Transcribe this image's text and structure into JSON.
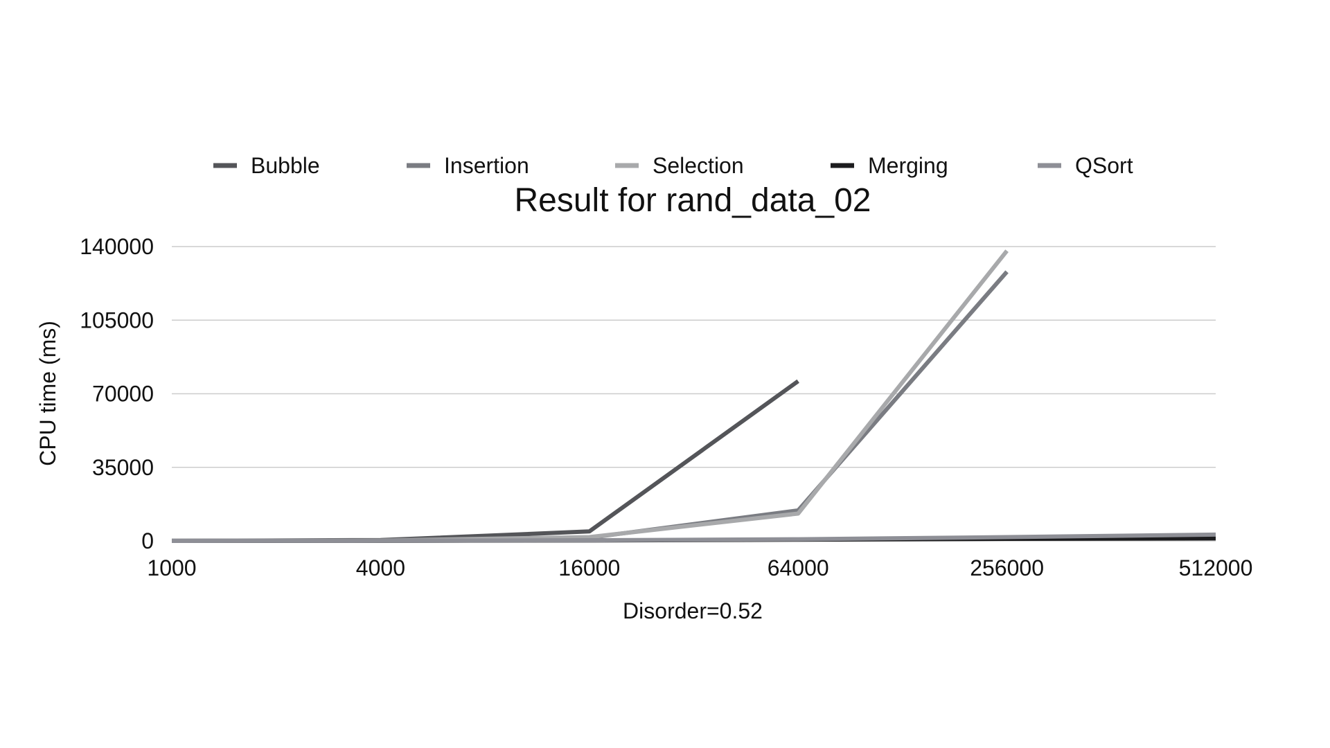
{
  "chart_data": {
    "type": "line",
    "title": "Result for rand_data_02",
    "xlabel": "Disorder=0.52",
    "ylabel": "CPU time (ms)",
    "categories": [
      "1000",
      "4000",
      "16000",
      "64000",
      "256000",
      "512000"
    ],
    "yticks": [
      "0",
      "35000",
      "70000",
      "105000",
      "140000"
    ],
    "ylim": [
      0,
      140000
    ],
    "grid": true,
    "legend_position": "top",
    "series": [
      {
        "name": "Bubble",
        "color": "#545559",
        "values": [
          50,
          400,
          4500,
          76000,
          null,
          null
        ]
      },
      {
        "name": "Insertion",
        "color": "#7a7c82",
        "values": [
          20,
          150,
          1500,
          14500,
          128000,
          null
        ]
      },
      {
        "name": "Selection",
        "color": "#a8a9ab",
        "values": [
          25,
          200,
          1800,
          13000,
          138000,
          null
        ]
      },
      {
        "name": "Merging",
        "color": "#1c1c1e",
        "values": [
          5,
          40,
          200,
          600,
          1000,
          1200
        ]
      },
      {
        "name": "QSort",
        "color": "#8e8f96",
        "values": [
          10,
          80,
          300,
          800,
          1800,
          3000
        ]
      }
    ]
  }
}
